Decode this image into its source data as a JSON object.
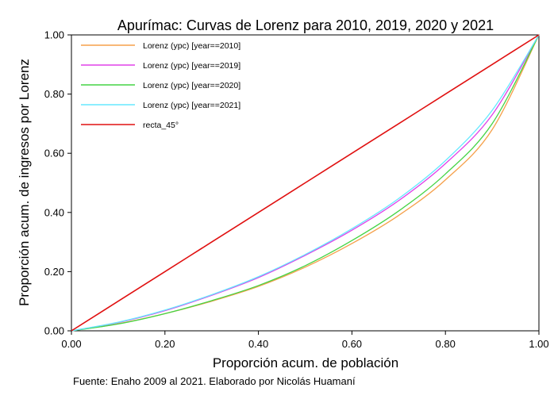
{
  "chart_data": {
    "type": "line",
    "title": "Apurímac: Curvas de Lorenz para 2010, 2019, 2020 y 2021",
    "xlabel": "Proporción acum. de población",
    "ylabel": "Proporción acum. de ingresos por Lorenz",
    "note": "Fuente: Enaho 2009 al 2021. Elaborado por Nicolás Huamaní",
    "xlim": [
      0,
      1
    ],
    "ylim": [
      0,
      1
    ],
    "xticks": [
      {
        "value": 0.0,
        "label": "0.00"
      },
      {
        "value": 0.2,
        "label": "0.20"
      },
      {
        "value": 0.4,
        "label": "0.40"
      },
      {
        "value": 0.6,
        "label": "0.60"
      },
      {
        "value": 0.8,
        "label": "0.80"
      },
      {
        "value": 1.0,
        "label": "1.00"
      }
    ],
    "yticks": [
      {
        "value": 0.0,
        "label": "0.00"
      },
      {
        "value": 0.2,
        "label": "0.20"
      },
      {
        "value": 0.4,
        "label": "0.40"
      },
      {
        "value": 0.6,
        "label": "0.60"
      },
      {
        "value": 0.8,
        "label": "0.80"
      },
      {
        "value": 1.0,
        "label": "1.00"
      }
    ],
    "grid": false,
    "legend_position": "top-left",
    "x": [
      0.0,
      0.1,
      0.2,
      0.3,
      0.4,
      0.5,
      0.6,
      0.7,
      0.8,
      0.9,
      1.0
    ],
    "series": [
      {
        "name": "Lorenz (ypc) [year==2010]",
        "color": "#f5a04a",
        "values": [
          0.0,
          0.024,
          0.058,
          0.1,
          0.15,
          0.215,
          0.295,
          0.39,
          0.51,
          0.68,
          1.0
        ]
      },
      {
        "name": "Lorenz (ypc) [year==2019]",
        "color": "#e040e8",
        "values": [
          0.0,
          0.028,
          0.068,
          0.12,
          0.18,
          0.255,
          0.34,
          0.44,
          0.565,
          0.73,
          1.0
        ]
      },
      {
        "name": "Lorenz (ypc) [year==2020]",
        "color": "#44d444",
        "values": [
          0.0,
          0.023,
          0.058,
          0.102,
          0.153,
          0.22,
          0.305,
          0.405,
          0.53,
          0.7,
          1.0
        ]
      },
      {
        "name": "Lorenz (ypc) [year==2021]",
        "color": "#66e8ff",
        "values": [
          0.0,
          0.029,
          0.07,
          0.122,
          0.183,
          0.258,
          0.345,
          0.447,
          0.575,
          0.745,
          1.0
        ]
      },
      {
        "name": "recta_45°",
        "color": "#e01010",
        "values": [
          0.0,
          0.1,
          0.2,
          0.3,
          0.4,
          0.5,
          0.6,
          0.7,
          0.8,
          0.9,
          1.0
        ]
      }
    ]
  }
}
